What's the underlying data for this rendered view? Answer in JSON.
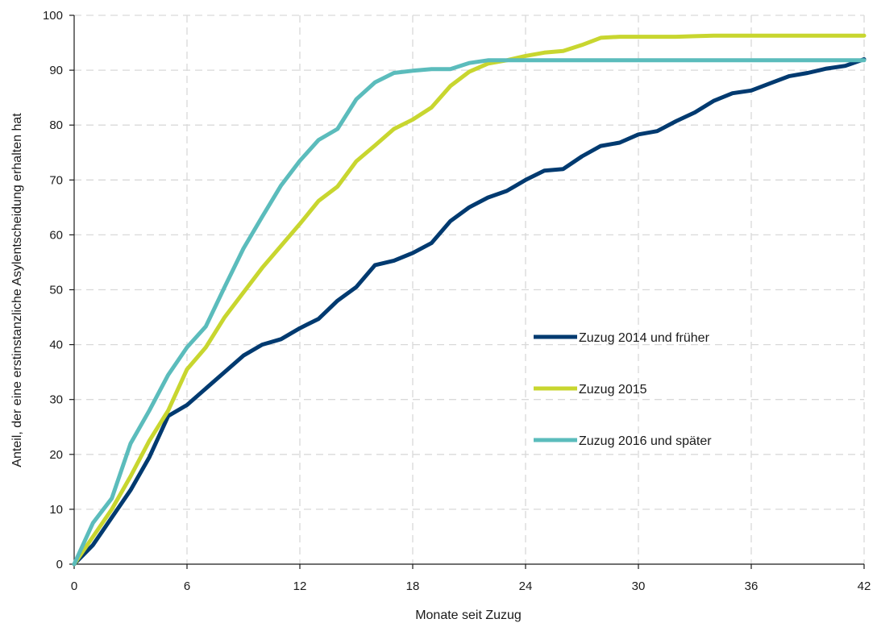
{
  "chart_data": {
    "type": "line",
    "title": "",
    "xlabel": "Monate seit Zuzug",
    "ylabel": "Anteil, der eine erstinstanzliche Asylentscheidung erhalten hat",
    "xlim": [
      0,
      42
    ],
    "ylim": [
      0,
      100
    ],
    "x_ticks": [
      0,
      6,
      12,
      18,
      24,
      30,
      36,
      42
    ],
    "y_ticks": [
      0,
      10,
      20,
      30,
      40,
      50,
      60,
      70,
      80,
      90,
      100
    ],
    "grid": true,
    "legend_position": "center-right",
    "x": [
      0,
      1,
      2,
      3,
      4,
      5,
      6,
      7,
      8,
      9,
      10,
      11,
      12,
      13,
      14,
      15,
      16,
      17,
      18,
      19,
      20,
      21,
      22,
      23,
      24,
      25,
      26,
      27,
      28,
      29,
      30,
      31,
      32,
      33,
      34,
      35,
      36,
      37,
      38,
      39,
      40,
      41,
      42
    ],
    "series": [
      {
        "name": "Zuzug 2014 und früher",
        "color": "#003a70",
        "values": [
          0,
          3.5,
          8.5,
          13.5,
          19.5,
          27,
          29,
          32,
          35,
          38,
          40,
          41,
          43,
          44.7,
          48,
          50.5,
          54.5,
          55.3,
          56.7,
          58.5,
          62.5,
          65,
          66.8,
          68,
          70,
          71.7,
          72,
          74.3,
          76.2,
          76.8,
          78.3,
          78.9,
          80.7,
          82.3,
          84.4,
          85.8,
          86.3,
          87.6,
          88.9,
          89.5,
          90.3,
          90.8,
          92
        ]
      },
      {
        "name": "Zuzug 2015",
        "color": "#c8d62f",
        "values": [
          0,
          5,
          10,
          16,
          22.5,
          28,
          35.5,
          39.5,
          45,
          49.5,
          54,
          58,
          62,
          66.2,
          68.8,
          73.4,
          76.3,
          79.3,
          81,
          83.2,
          87.1,
          89.7,
          91.2,
          91.8,
          92.6,
          93.2,
          93.5,
          94.6,
          95.9,
          96.1,
          96.1,
          96.1,
          96.1,
          96.2,
          96.3,
          96.3,
          96.3,
          96.3,
          96.3,
          96.3,
          96.3,
          96.3,
          96.3
        ]
      },
      {
        "name": "Zuzug 2016 und später",
        "color": "#5bbcbc",
        "values": [
          0,
          7.5,
          12,
          22,
          28,
          34.5,
          39.5,
          43.3,
          50.5,
          57.5,
          63.3,
          69,
          73.5,
          77.3,
          79.3,
          84.7,
          87.8,
          89.5,
          89.9,
          90.2,
          90.2,
          91.3,
          91.8,
          91.8,
          91.8,
          91.8,
          91.8,
          91.8,
          91.8,
          91.8,
          91.8,
          91.8,
          91.8,
          91.8,
          91.8,
          91.8,
          91.8,
          91.8,
          91.8,
          91.8,
          91.8,
          91.8,
          91.8
        ]
      }
    ]
  }
}
